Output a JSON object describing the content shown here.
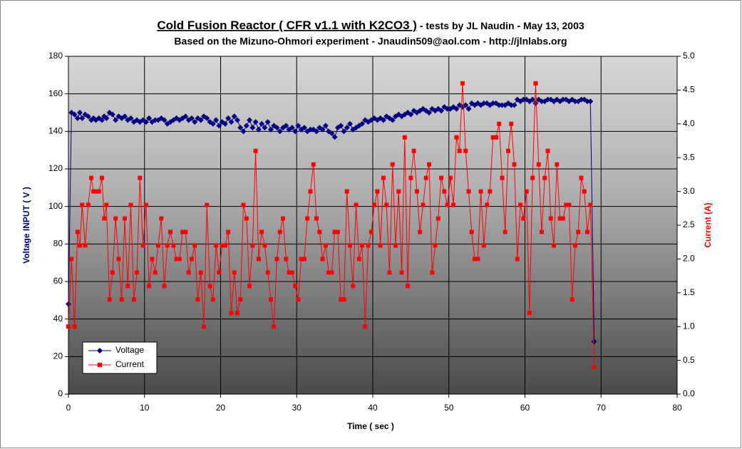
{
  "chart_data": {
    "type": "line",
    "title": "Cold Fusion Reactor ( CFR v1.1 with K2CO3 )",
    "title_suffix": " - tests by JL Naudin - May 13, 2003",
    "subtitle": "Based on the Mizuno-Ohmori experiment - Jnaudin509@aol.com - http://jlnlabs.org",
    "x_label": "Time ( sec )",
    "y_label": "Voltage INPUT ( V )",
    "y2_label": "Current (A)",
    "x": [
      0,
      0.4,
      0.8,
      1.2,
      1.5,
      1.8,
      2.2,
      2.6,
      3.0,
      3.3,
      3.6,
      4.0,
      4.4,
      4.7,
      5.0,
      5.4,
      5.8,
      6.2,
      6.6,
      7.0,
      7.4,
      7.8,
      8.2,
      8.6,
      9.0,
      9.4,
      9.8,
      10.2,
      10.6,
      11.0,
      11.4,
      11.8,
      12.2,
      12.6,
      13.0,
      13.4,
      13.8,
      14.2,
      14.6,
      15.0,
      15.4,
      15.8,
      16.2,
      16.6,
      17.0,
      17.4,
      17.8,
      18.2,
      18.6,
      19.0,
      19.4,
      19.8,
      20.2,
      20.6,
      21.0,
      21.4,
      21.8,
      22.2,
      22.6,
      23.0,
      23.4,
      23.8,
      24.2,
      24.6,
      25.0,
      25.4,
      25.8,
      26.2,
      26.6,
      27.0,
      27.4,
      27.8,
      28.2,
      28.6,
      29.0,
      29.4,
      29.8,
      30.2,
      30.6,
      31.0,
      31.4,
      31.8,
      32.2,
      32.6,
      33.0,
      33.4,
      33.8,
      34.2,
      34.6,
      35.0,
      35.4,
      35.8,
      36.2,
      36.6,
      37.0,
      37.4,
      37.8,
      38.2,
      38.6,
      39.0,
      39.4,
      39.8,
      40.2,
      40.6,
      41.0,
      41.4,
      41.8,
      42.2,
      42.6,
      43.0,
      43.4,
      43.8,
      44.2,
      44.6,
      45.0,
      45.4,
      45.8,
      46.2,
      46.6,
      47.0,
      47.4,
      47.8,
      48.2,
      48.6,
      49.0,
      49.4,
      49.8,
      50.2,
      50.6,
      51.0,
      51.4,
      51.8,
      52.2,
      52.6,
      53.0,
      53.4,
      53.8,
      54.2,
      54.6,
      55.0,
      55.4,
      55.8,
      56.2,
      56.6,
      57.0,
      57.4,
      57.8,
      58.2,
      58.6,
      59.0,
      59.4,
      59.8,
      60.2,
      60.6,
      61.0,
      61.4,
      61.8,
      62.2,
      62.6,
      63.0,
      63.4,
      63.8,
      64.2,
      64.6,
      65.0,
      65.4,
      65.8,
      66.2,
      66.6,
      67.0,
      67.4,
      67.8,
      68.2,
      68.6,
      69.1
    ],
    "series": [
      {
        "name": "Voltage",
        "color": "#000080",
        "marker": "diamond",
        "values": [
          48,
          150,
          149,
          147,
          150,
          147,
          149,
          148,
          146,
          147,
          146,
          147,
          146,
          148,
          147,
          150,
          149,
          146,
          148,
          147,
          148,
          146,
          147,
          145,
          146,
          145,
          146,
          145,
          147,
          145,
          146,
          146,
          147,
          146,
          144,
          145,
          146,
          147,
          146,
          147,
          148,
          146,
          147,
          145,
          147,
          146,
          148,
          147,
          145,
          144,
          146,
          143,
          145,
          144,
          147,
          145,
          148,
          146,
          142,
          140,
          143,
          146,
          142,
          145,
          141,
          144,
          142,
          145,
          141,
          143,
          142,
          140,
          142,
          143,
          141,
          142,
          140,
          143,
          141,
          142,
          140,
          141,
          141,
          140,
          142,
          141,
          143,
          140,
          139,
          137,
          142,
          143,
          140,
          142,
          144,
          141,
          142,
          143,
          144,
          146,
          145,
          146,
          147,
          146,
          147,
          146,
          148,
          147,
          146,
          148,
          149,
          148,
          149,
          150,
          149,
          151,
          150,
          151,
          152,
          151,
          150,
          152,
          151,
          152,
          151,
          153,
          152,
          152,
          153,
          152,
          154,
          153,
          154,
          152,
          155,
          154,
          155,
          154,
          155,
          155,
          154,
          155,
          155,
          154,
          154,
          154,
          155,
          154,
          154,
          157,
          156,
          157,
          157,
          156,
          157,
          155,
          157,
          156,
          156,
          157,
          157,
          156,
          157,
          156,
          157,
          157,
          156,
          157,
          156,
          156,
          157,
          157,
          156,
          156,
          28
        ]
      },
      {
        "name": "Current",
        "color": "#ff0000",
        "marker": "square",
        "axis": "y2",
        "values": [
          1.0,
          2.0,
          1.0,
          2.4,
          2.2,
          2.8,
          2.2,
          2.8,
          3.2,
          3.0,
          3.0,
          3.0,
          3.2,
          2.6,
          2.8,
          1.4,
          1.8,
          2.6,
          2.0,
          1.4,
          2.6,
          1.6,
          2.8,
          1.4,
          1.8,
          3.2,
          2.2,
          2.8,
          1.6,
          2.0,
          1.8,
          2.2,
          2.6,
          1.6,
          2.2,
          2.4,
          2.2,
          2.0,
          2.0,
          2.4,
          2.4,
          1.8,
          2.0,
          2.2,
          1.4,
          1.8,
          1.0,
          2.8,
          1.6,
          1.4,
          2.2,
          1.8,
          2.2,
          2.2,
          2.4,
          1.2,
          1.8,
          1.2,
          1.4,
          2.8,
          2.6,
          1.6,
          2.2,
          3.6,
          2.0,
          2.4,
          2.2,
          1.8,
          1.4,
          1.0,
          2.0,
          2.4,
          2.6,
          2.0,
          1.8,
          1.8,
          1.6,
          1.4,
          2.0,
          2.0,
          2.6,
          3.0,
          3.4,
          2.6,
          2.4,
          2.0,
          2.2,
          1.8,
          1.8,
          2.4,
          2.4,
          1.4,
          1.4,
          3.0,
          2.2,
          1.6,
          2.8,
          2.0,
          2.2,
          1.0,
          2.2,
          2.4,
          2.8,
          3.0,
          2.2,
          3.2,
          2.8,
          1.8,
          3.4,
          2.2,
          3.0,
          1.8,
          3.8,
          1.6,
          3.2,
          3.6,
          3.0,
          2.4,
          2.8,
          3.2,
          3.4,
          1.8,
          2.2,
          2.6,
          3.2,
          3.0,
          2.8,
          3.2,
          2.8,
          3.8,
          3.6,
          4.6,
          3.6,
          3.0,
          2.4,
          2.0,
          2.0,
          3.0,
          2.2,
          2.8,
          3.0,
          3.8,
          3.8,
          4.0,
          3.2,
          2.4,
          3.6,
          4.0,
          3.4,
          2.0,
          2.8,
          2.6,
          3.0,
          1.2,
          3.2,
          4.6,
          3.4,
          2.4,
          3.2,
          3.6,
          2.6,
          2.2,
          3.4,
          2.6,
          2.6,
          2.8,
          2.8,
          1.4,
          2.2,
          2.4,
          3.2,
          3.0,
          2.4,
          2.8,
          0.4
        ]
      }
    ],
    "xlim": [
      0,
      80
    ],
    "xticks": [
      0,
      10,
      20,
      30,
      40,
      50,
      60,
      70,
      80
    ],
    "ylim": [
      0,
      180
    ],
    "yticks": [
      0,
      20,
      40,
      60,
      80,
      100,
      120,
      140,
      160,
      180
    ],
    "y2lim": [
      0,
      5
    ],
    "y2ticks": [
      {
        "value": 0,
        "label": "0.0"
      },
      0.5,
      {
        "value": 1,
        "label": "1.0"
      },
      1.5,
      {
        "value": 2,
        "label": "2.0"
      },
      2.5,
      {
        "value": 3,
        "label": "3.0"
      },
      3.5,
      {
        "value": 4,
        "label": "4.0"
      },
      4.5,
      {
        "value": 5,
        "label": "5.0"
      }
    ],
    "grid": true,
    "legend": "lower left"
  }
}
